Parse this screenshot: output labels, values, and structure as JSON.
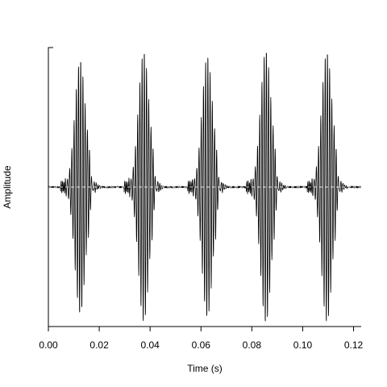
{
  "chart_data": {
    "type": "line",
    "title": "",
    "xlabel": "Time (s)",
    "ylabel": "Amplitude",
    "xlim": [
      0.0,
      0.123
    ],
    "ylim": [
      -1.0,
      1.0
    ],
    "x_ticks": [
      0.0,
      0.02,
      0.04,
      0.06,
      0.08,
      0.1,
      0.12
    ],
    "x_tick_labels": [
      "0.00",
      "0.02",
      "0.04",
      "0.06",
      "0.08",
      "0.10",
      "0.12"
    ],
    "y_ticks_labeled": false,
    "grid": false,
    "legend": "none",
    "series": [
      {
        "kind": "waveform",
        "color": "#000000",
        "burst_centers_s": [
          0.0125,
          0.0375,
          0.0625,
          0.0855,
          0.1095
        ],
        "burst_peak_amplitudes": [
          0.92,
          0.98,
          0.95,
          0.99,
          0.98
        ],
        "burst_half_width_s": 0.0035,
        "tail_decay_to_s": 0.005,
        "baseline": 0.0
      }
    ],
    "zero_line": {
      "shown": true,
      "style": "dashed",
      "color": "#ffffff"
    }
  }
}
